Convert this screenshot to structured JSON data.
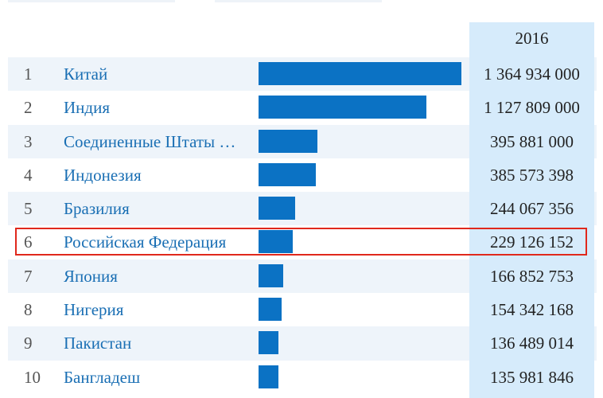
{
  "table": {
    "year_header": "2016",
    "max_value": 1364934000,
    "rows": [
      {
        "rank": "1",
        "country": "Китай",
        "value": "1 364 934 000",
        "population": 1364934000
      },
      {
        "rank": "2",
        "country": "Индия",
        "value": "1 127 809 000",
        "population": 1127809000
      },
      {
        "rank": "3",
        "country": "Соединенные Штаты …",
        "value": "395 881 000",
        "population": 395881000
      },
      {
        "rank": "4",
        "country": "Индонезия",
        "value": "385 573 398",
        "population": 385573398
      },
      {
        "rank": "5",
        "country": "Бразилия",
        "value": "244 067 356",
        "population": 244067356
      },
      {
        "rank": "6",
        "country": "Российская Федерация",
        "value": "229 126 152",
        "population": 229126152,
        "highlighted": true
      },
      {
        "rank": "7",
        "country": "Япония",
        "value": "166 852 753",
        "population": 166852753
      },
      {
        "rank": "8",
        "country": "Нигерия",
        "value": "154 342 168",
        "population": 154342168
      },
      {
        "rank": "9",
        "country": "Пакистан",
        "value": "136 489 014",
        "population": 136489014
      },
      {
        "rank": "10",
        "country": "Бангладеш",
        "value": "135 981 846",
        "population": 135981846
      }
    ]
  },
  "colors": {
    "bar": "#0b72c4",
    "link": "#1a6fb4",
    "highlight_border": "#e0281c",
    "year_column": "#d6ebfb",
    "stripe": "#eef4fa"
  }
}
